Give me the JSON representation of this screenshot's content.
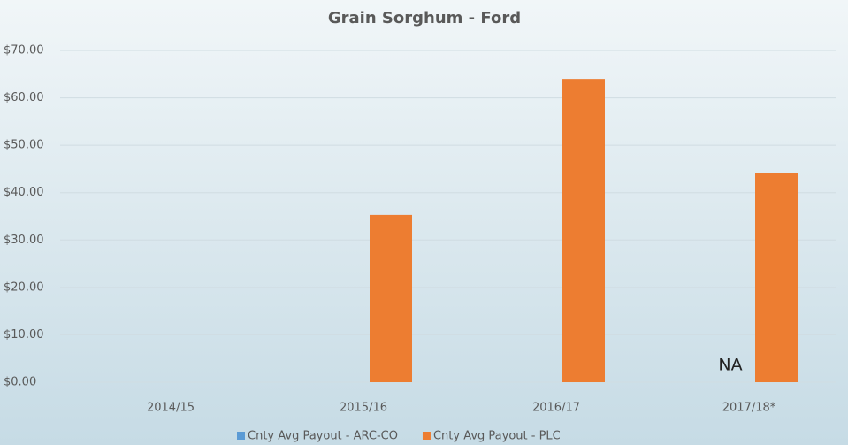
{
  "chart_data": {
    "type": "bar",
    "title": "Grain Sorghum - Ford",
    "categories": [
      "2014/15",
      "2015/16",
      "2016/17",
      "2017/18*"
    ],
    "series": [
      {
        "name": "Cnty Avg Payout - ARC-CO",
        "color": "#5b9bd5",
        "values": [
          0,
          0,
          0,
          null
        ]
      },
      {
        "name": "Cnty Avg Payout - PLC",
        "color": "#ed7d31",
        "values": [
          0,
          35.3,
          64,
          44.2
        ]
      }
    ],
    "ylim": [
      0,
      70
    ],
    "yticks": [
      {
        "value": 0,
        "label": "$0.00"
      },
      {
        "value": 10,
        "label": "$10.00"
      },
      {
        "value": 20,
        "label": "$20.00"
      },
      {
        "value": 30,
        "label": "$30.00"
      },
      {
        "value": 40,
        "label": "$40.00"
      },
      {
        "value": 50,
        "label": "$50.00"
      },
      {
        "value": 60,
        "label": "$60.00"
      },
      {
        "value": 70,
        "label": "$70.00"
      }
    ],
    "grid": true,
    "legend": "bottom",
    "annotations": [
      {
        "text": "NA"
      }
    ]
  }
}
